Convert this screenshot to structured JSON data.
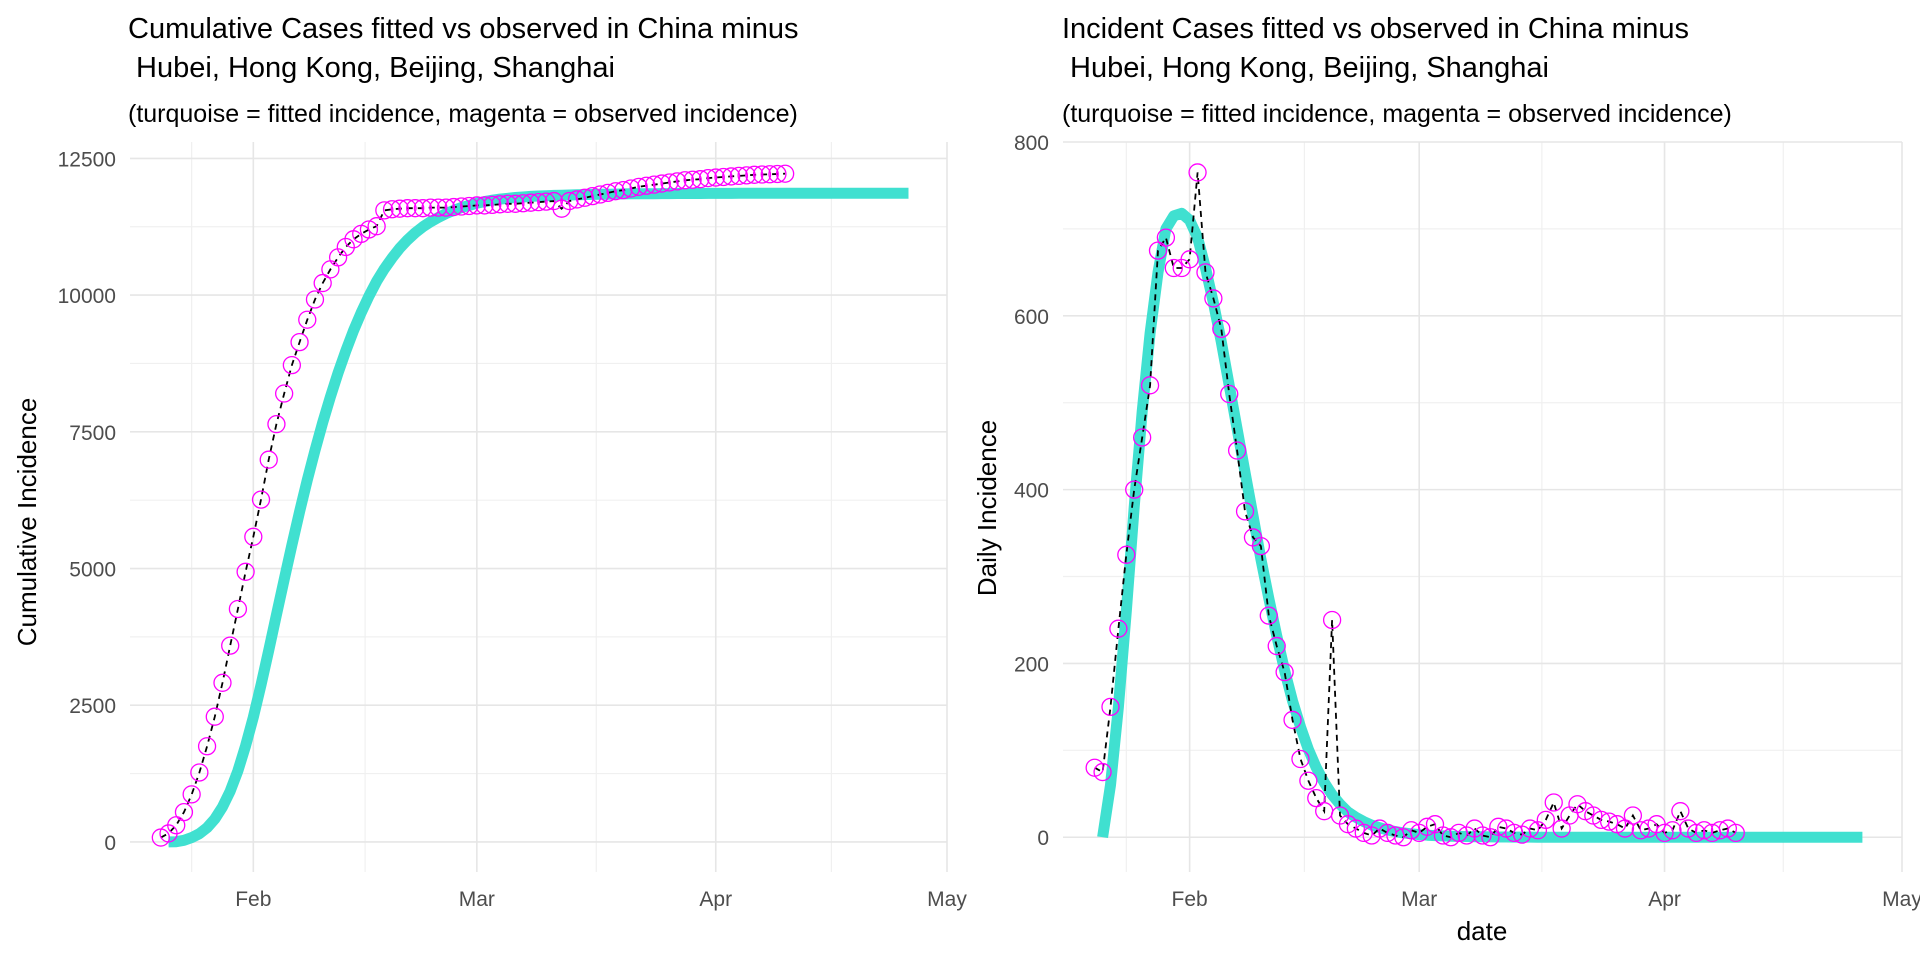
{
  "chart_data": [
    {
      "type": "line",
      "title_line1": "Cumulative Cases fitted vs observed in China minus",
      "title_line2": " Hubei, Hong Kong, Beijing, Shanghai",
      "subtitle": "(turquoise = fitted incidence, magenta = observed incidence)",
      "xlabel": "",
      "ylabel": "Cumulative Incidence",
      "xlim": [
        "2020-01-16",
        "2020-05-01"
      ],
      "ylim": [
        -550,
        12800
      ],
      "yticks": [
        0,
        2500,
        5000,
        7500,
        10000,
        12500
      ],
      "ytick_labels": [
        "0",
        "2500",
        "5000",
        "7500",
        "10000",
        "12500"
      ],
      "xticks": [
        "2020-02-01",
        "2020-03-01",
        "2020-04-01",
        "2020-05-01"
      ],
      "xtick_labels": [
        "Feb",
        "Mar",
        "Apr",
        "May"
      ],
      "grid": true,
      "colors": {
        "fitted": "#40e0d0",
        "observed": "#ff00ff",
        "observed_line": "#000000"
      },
      "series": [
        {
          "x": [
            "2020-01-21",
            "2020-01-22",
            "2020-01-23",
            "2020-01-24",
            "2020-01-25",
            "2020-01-26",
            "2020-01-27",
            "2020-01-28",
            "2020-01-29",
            "2020-01-30",
            "2020-01-31",
            "2020-02-01",
            "2020-02-02",
            "2020-02-03",
            "2020-02-04",
            "2020-02-05",
            "2020-02-06",
            "2020-02-07",
            "2020-02-08",
            "2020-02-09",
            "2020-02-10",
            "2020-02-11",
            "2020-02-12",
            "2020-02-13",
            "2020-02-14",
            "2020-02-15",
            "2020-02-16",
            "2020-02-17",
            "2020-02-18",
            "2020-02-19",
            "2020-02-20",
            "2020-02-21",
            "2020-02-22",
            "2020-02-23",
            "2020-02-24",
            "2020-02-25",
            "2020-02-26",
            "2020-02-27",
            "2020-02-28",
            "2020-02-29",
            "2020-03-01",
            "2020-03-02",
            "2020-03-03",
            "2020-03-04",
            "2020-03-05",
            "2020-03-06",
            "2020-03-07",
            "2020-03-08",
            "2020-03-09",
            "2020-03-10",
            "2020-03-11",
            "2020-03-12",
            "2020-03-13",
            "2020-03-14",
            "2020-03-15",
            "2020-03-16",
            "2020-03-17",
            "2020-03-18",
            "2020-03-19",
            "2020-03-20",
            "2020-03-21",
            "2020-03-22",
            "2020-03-23",
            "2020-03-24",
            "2020-03-25",
            "2020-03-26",
            "2020-03-27",
            "2020-03-28",
            "2020-03-29",
            "2020-03-30",
            "2020-03-31",
            "2020-04-01",
            "2020-04-02",
            "2020-04-03",
            "2020-04-04",
            "2020-04-05",
            "2020-04-06",
            "2020-04-07",
            "2020-04-08",
            "2020-04-09",
            "2020-04-10",
            "2020-04-11",
            "2020-04-12",
            "2020-04-13",
            "2020-04-14",
            "2020-04-15",
            "2020-04-16",
            "2020-04-17",
            "2020-04-18",
            "2020-04-19",
            "2020-04-20",
            "2020-04-21",
            "2020-04-22",
            "2020-04-23",
            "2020-04-24",
            "2020-04-25",
            "2020-04-26"
          ],
          "values": [
            0,
            5,
            30,
            80,
            150,
            260,
            420,
            640,
            930,
            1300,
            1760,
            2280,
            2870,
            3500,
            4150,
            4800,
            5430,
            6040,
            6620,
            7160,
            7670,
            8140,
            8580,
            8980,
            9350,
            9680,
            9980,
            10250,
            10480,
            10680,
            10860,
            11010,
            11140,
            11250,
            11340,
            11420,
            11490,
            11550,
            11600,
            11640,
            11680,
            11710,
            11735,
            11755,
            11770,
            11785,
            11795,
            11805,
            11812,
            11818,
            11823,
            11827,
            11831,
            11835,
            11838,
            11841,
            11844,
            11846,
            11848,
            11850,
            11852,
            11853,
            11854,
            11855,
            11856,
            11857,
            11858,
            11858,
            11859,
            11859,
            11860,
            11860,
            11860,
            11860,
            11861,
            11861,
            11861,
            11861,
            11861,
            11861,
            11861,
            11861,
            11861,
            11861,
            11861,
            11861,
            11861,
            11861,
            11861,
            11861,
            11861,
            11861,
            11861,
            11861,
            11861,
            11861,
            11861
          ]
        },
        {
          "x": [
            "2020-01-20",
            "2020-01-21",
            "2020-01-22",
            "2020-01-23",
            "2020-01-24",
            "2020-01-25",
            "2020-01-26",
            "2020-01-27",
            "2020-01-28",
            "2020-01-29",
            "2020-01-30",
            "2020-01-31",
            "2020-02-01",
            "2020-02-02",
            "2020-02-03",
            "2020-02-04",
            "2020-02-05",
            "2020-02-06",
            "2020-02-07",
            "2020-02-08",
            "2020-02-09",
            "2020-02-10",
            "2020-02-11",
            "2020-02-12",
            "2020-02-13",
            "2020-02-14",
            "2020-02-15",
            "2020-02-16",
            "2020-02-17",
            "2020-02-18",
            "2020-02-19",
            "2020-02-20",
            "2020-02-21",
            "2020-02-22",
            "2020-02-23",
            "2020-02-24",
            "2020-02-25",
            "2020-02-26",
            "2020-02-27",
            "2020-02-28",
            "2020-02-29",
            "2020-03-01",
            "2020-03-02",
            "2020-03-03",
            "2020-03-04",
            "2020-03-05",
            "2020-03-06",
            "2020-03-07",
            "2020-03-08",
            "2020-03-09",
            "2020-03-10",
            "2020-03-11",
            "2020-03-12",
            "2020-03-13",
            "2020-03-14",
            "2020-03-15",
            "2020-03-16",
            "2020-03-17",
            "2020-03-18",
            "2020-03-19",
            "2020-03-20",
            "2020-03-21",
            "2020-03-22",
            "2020-03-23",
            "2020-03-24",
            "2020-03-25",
            "2020-03-26",
            "2020-03-27",
            "2020-03-28",
            "2020-03-29",
            "2020-03-30",
            "2020-03-31",
            "2020-04-01",
            "2020-04-02",
            "2020-04-03",
            "2020-04-04",
            "2020-04-05",
            "2020-04-06",
            "2020-04-07",
            "2020-04-08",
            "2020-04-09",
            "2020-04-10"
          ],
          "values": [
            80,
            155,
            305,
            545,
            870,
            1270,
            1750,
            2290,
            2910,
            3590,
            4260,
            4940,
            5580,
            6260,
            6990,
            7640,
            8200,
            8720,
            9140,
            9550,
            9920,
            10220,
            10470,
            10690,
            10880,
            11020,
            11120,
            11200,
            11260,
            11550,
            11570,
            11580,
            11590,
            11590,
            11590,
            11600,
            11600,
            11600,
            11610,
            11620,
            11630,
            11640,
            11640,
            11650,
            11660,
            11670,
            11670,
            11680,
            11690,
            11700,
            11710,
            11720,
            11580,
            11720,
            11750,
            11780,
            11810,
            11840,
            11870,
            11900,
            11920,
            11950,
            11980,
            12000,
            12020,
            12040,
            12060,
            12080,
            12100,
            12110,
            12120,
            12140,
            12150,
            12160,
            12170,
            12180,
            12190,
            12200,
            12205,
            12210,
            12215,
            12220
          ]
        }
      ]
    },
    {
      "type": "line",
      "title_line1": "Incident Cases fitted vs observed in China minus",
      "title_line2": " Hubei, Hong Kong, Beijing, Shanghai",
      "subtitle": "(turquoise = fitted incidence, magenta = observed incidence)",
      "xlabel": "date",
      "ylabel": "Daily Incidence",
      "xlim": [
        "2020-01-16",
        "2020-05-01"
      ],
      "ylim": [
        -40,
        800
      ],
      "yticks": [
        0,
        200,
        400,
        600,
        800
      ],
      "ytick_labels": [
        "0",
        "200",
        "400",
        "600",
        "800"
      ],
      "xticks": [
        "2020-02-01",
        "2020-03-01",
        "2020-04-01",
        "2020-05-01"
      ],
      "xtick_labels": [
        "Feb",
        "Mar",
        "Apr",
        "May"
      ],
      "grid": true,
      "colors": {
        "fitted": "#40e0d0",
        "observed": "#ff00ff",
        "observed_line": "#000000"
      },
      "series": [
        {
          "x": [
            "2020-01-21",
            "2020-01-22",
            "2020-01-23",
            "2020-01-24",
            "2020-01-25",
            "2020-01-26",
            "2020-01-27",
            "2020-01-28",
            "2020-01-29",
            "2020-01-30",
            "2020-01-31",
            "2020-02-01",
            "2020-02-02",
            "2020-02-03",
            "2020-02-04",
            "2020-02-05",
            "2020-02-06",
            "2020-02-07",
            "2020-02-08",
            "2020-02-09",
            "2020-02-10",
            "2020-02-11",
            "2020-02-12",
            "2020-02-13",
            "2020-02-14",
            "2020-02-15",
            "2020-02-16",
            "2020-02-17",
            "2020-02-18",
            "2020-02-19",
            "2020-02-20",
            "2020-02-21",
            "2020-02-22",
            "2020-02-23",
            "2020-02-24",
            "2020-02-25",
            "2020-02-26",
            "2020-02-27",
            "2020-02-28",
            "2020-02-29",
            "2020-03-01",
            "2020-03-02",
            "2020-03-03",
            "2020-03-04",
            "2020-03-05",
            "2020-03-06",
            "2020-03-07",
            "2020-03-08",
            "2020-03-09",
            "2020-03-10",
            "2020-03-11",
            "2020-03-12",
            "2020-03-13",
            "2020-03-14",
            "2020-03-15",
            "2020-03-16",
            "2020-03-17",
            "2020-03-18",
            "2020-03-19",
            "2020-03-20",
            "2020-03-21",
            "2020-03-22",
            "2020-03-23",
            "2020-03-24",
            "2020-03-25",
            "2020-03-26",
            "2020-03-27",
            "2020-03-28",
            "2020-03-29",
            "2020-03-30",
            "2020-03-31",
            "2020-04-01",
            "2020-04-02",
            "2020-04-03",
            "2020-04-04",
            "2020-04-05",
            "2020-04-06",
            "2020-04-07",
            "2020-04-08",
            "2020-04-09",
            "2020-04-10",
            "2020-04-11",
            "2020-04-12",
            "2020-04-13",
            "2020-04-14",
            "2020-04-15",
            "2020-04-16",
            "2020-04-17",
            "2020-04-18",
            "2020-04-19",
            "2020-04-20",
            "2020-04-21",
            "2020-04-22",
            "2020-04-23",
            "2020-04-24",
            "2020-04-25",
            "2020-04-26"
          ],
          "values": [
            0,
            60,
            150,
            260,
            380,
            490,
            580,
            650,
            700,
            715,
            718,
            710,
            690,
            655,
            615,
            570,
            520,
            470,
            420,
            370,
            320,
            275,
            232,
            192,
            157,
            127,
            101,
            80,
            63,
            49,
            38,
            29,
            23,
            18,
            14,
            11,
            8.5,
            6.5,
            5,
            4,
            3,
            2.4,
            1.9,
            1.5,
            1.2,
            1,
            0.8,
            0.6,
            0.5,
            0.4,
            0.3,
            0.25,
            0.2,
            0.15,
            0.12,
            0.1,
            0.08,
            0.06,
            0.05,
            0.04,
            0.03,
            0.03,
            0.02,
            0.02,
            0.02,
            0.01,
            0.01,
            0.01,
            0.01,
            0,
            0,
            0,
            0,
            0,
            0,
            0,
            0,
            0,
            0,
            0,
            0,
            0,
            0,
            0,
            0,
            0,
            0,
            0,
            0,
            0,
            0,
            0,
            0,
            0,
            0,
            0,
            0
          ]
        },
        {
          "x": [
            "2020-01-20",
            "2020-01-21",
            "2020-01-22",
            "2020-01-23",
            "2020-01-24",
            "2020-01-25",
            "2020-01-26",
            "2020-01-27",
            "2020-01-28",
            "2020-01-29",
            "2020-01-30",
            "2020-01-31",
            "2020-02-01",
            "2020-02-02",
            "2020-02-03",
            "2020-02-04",
            "2020-02-05",
            "2020-02-06",
            "2020-02-07",
            "2020-02-08",
            "2020-02-09",
            "2020-02-10",
            "2020-02-11",
            "2020-02-12",
            "2020-02-13",
            "2020-02-14",
            "2020-02-15",
            "2020-02-16",
            "2020-02-17",
            "2020-02-18",
            "2020-02-19",
            "2020-02-20",
            "2020-02-21",
            "2020-02-22",
            "2020-02-23",
            "2020-02-24",
            "2020-02-25",
            "2020-02-26",
            "2020-02-27",
            "2020-02-28",
            "2020-02-29",
            "2020-03-01",
            "2020-03-02",
            "2020-03-03",
            "2020-03-04",
            "2020-03-05",
            "2020-03-06",
            "2020-03-07",
            "2020-03-08",
            "2020-03-09",
            "2020-03-10",
            "2020-03-11",
            "2020-03-12",
            "2020-03-13",
            "2020-03-14",
            "2020-03-15",
            "2020-03-16",
            "2020-03-17",
            "2020-03-18",
            "2020-03-19",
            "2020-03-20",
            "2020-03-21",
            "2020-03-22",
            "2020-03-23",
            "2020-03-24",
            "2020-03-25",
            "2020-03-26",
            "2020-03-27",
            "2020-03-28",
            "2020-03-29",
            "2020-03-30",
            "2020-03-31",
            "2020-04-01",
            "2020-04-02",
            "2020-04-03",
            "2020-04-04",
            "2020-04-05",
            "2020-04-06",
            "2020-04-07",
            "2020-04-08",
            "2020-04-09",
            "2020-04-10"
          ],
          "values": [
            80,
            75,
            150,
            240,
            325,
            400,
            460,
            520,
            675,
            690,
            655,
            655,
            665,
            765,
            650,
            620,
            585,
            510,
            445,
            375,
            345,
            335,
            255,
            220,
            190,
            135,
            90,
            65,
            45,
            30,
            250,
            25,
            15,
            10,
            5,
            2,
            10,
            5,
            2,
            0,
            8,
            5,
            12,
            15,
            2,
            0,
            5,
            2,
            10,
            2,
            0,
            12,
            10,
            5,
            3,
            10,
            8,
            20,
            40,
            10,
            25,
            38,
            30,
            25,
            20,
            18,
            15,
            10,
            25,
            8,
            10,
            15,
            5,
            8,
            30,
            10,
            5,
            8,
            5,
            8,
            10,
            5
          ]
        }
      ]
    }
  ]
}
